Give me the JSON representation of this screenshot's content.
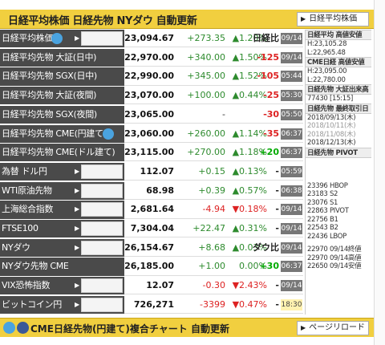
{
  "header": {
    "title": "日経平均株価 日経先物 NYダウ 自動更新",
    "button_label": "日経平均株価"
  },
  "rows": [
    {
      "name": "日経平均株価",
      "price": "23,094.67",
      "change": "+273.35",
      "pct": "▲1.20%",
      "extra": "日経比",
      "time": "09/14",
      "tw": true,
      "chart": true
    },
    {
      "name": "日経平均先物 大証(日中)",
      "price": "22,970.00",
      "change": "+340.00",
      "pct": "▲1.50%",
      "extra": "-125",
      "time": "09/14"
    },
    {
      "name": "日経平均先物 SGX(日中)",
      "price": "22,990.00",
      "change": "+345.00",
      "pct": "▲1.52%",
      "extra": "-105",
      "time": "05:44"
    },
    {
      "name": "日経平均先物 大証(夜間)",
      "price": "23,070.00",
      "change": "+100.00",
      "pct": "▲0.44%",
      "extra": "-25",
      "time": "05:30"
    },
    {
      "name": "日経平均先物 SGX(夜間)",
      "price": "23,065.00",
      "change": "-",
      "pct": "-",
      "extra": "-30",
      "time": "05:50"
    },
    {
      "name": "日経平均先物 CME(円建て)",
      "price": "23,060.00",
      "change": "+260.00",
      "pct": "▲1.14%",
      "extra": "-35",
      "time": "06:37",
      "tw": true
    },
    {
      "name": "日経平均先物 CME(ドル建て)",
      "price": "23,115.00",
      "change": "+270.00",
      "pct": "▲1.18%",
      "extra": "+20",
      "time": "06:37"
    },
    {
      "name": "為替 ドル円",
      "price": "112.07",
      "change": "+0.15",
      "pct": "▲0.13%",
      "extra": "-",
      "time": "05:59",
      "chart": true
    },
    {
      "name": "WTI原油先物",
      "price": "68.98",
      "change": "+0.39",
      "pct": "▲0.57%",
      "extra": "-",
      "time": "06:38",
      "chart": true
    },
    {
      "name": "上海総合指数",
      "price": "2,681.64",
      "change": "-4.94",
      "pct": "▼0.18%",
      "extra": "-",
      "time": "09/14",
      "chart": true
    },
    {
      "name": "FTSE100",
      "price": "7,304.04",
      "change": "+22.47",
      "pct": "▲0.31%",
      "extra": "-",
      "time": "09/14",
      "chart": true
    },
    {
      "name": "NYダウ",
      "price": "26,154.67",
      "change": "+8.68",
      "pct": "▲0.03%",
      "extra": "ダウ比",
      "time": "09/14",
      "chart": true
    },
    {
      "name": "NYダウ先物 CME",
      "price": "26,185.00",
      "change": "+1.00",
      "pct": "0.00%",
      "extra": "+30",
      "time": "06:37"
    },
    {
      "name": "VIX恐怖指数",
      "price": "12.07",
      "change": "-0.30",
      "pct": "▼2.43%",
      "extra": "-",
      "time": "09/14",
      "chart": true
    },
    {
      "name": "ビットコイン円",
      "price": "726,271",
      "change": "-3399",
      "pct": "▼0.47%",
      "extra": "-",
      "time": "18:30",
      "chart": true
    }
  ],
  "side": {
    "h1": "日経平均 高値安値",
    "h1_lines": [
      "H:23,105.28",
      "L:22,965.48"
    ],
    "h2": "CME日経 高値安値",
    "h2_lines": [
      "H:23,095.00",
      "L:22,780.00"
    ],
    "h3": "日経先物 大証出来高",
    "h3_lines": [
      "77430 [15:15]"
    ],
    "h4": "日経先物 最終取引日",
    "h4_lines": [
      "2018/09/13(木)",
      "2018/10/11(木)",
      "2018/11/08(木)",
      "2018/12/13(木)"
    ],
    "h5": "日経先物 PIVOT",
    "h5_lines": [
      "23396 HBOP",
      "23183 S2",
      "23076 S1",
      "22863 PIVOT",
      "22756 B1",
      "22543 B2",
      "22436 LBOP",
      "22970 09/14終値",
      "22970 09/14高値",
      "22650 09/14安値"
    ]
  },
  "footer": {
    "title": "CME日経先物(円建て)複合チャート 自動更新",
    "button_label": "ページリロード"
  },
  "colors": {
    "header_bg": "#f1cf3f",
    "row_label_bg": "#4a4a4a",
    "up": "#2e8b2e",
    "down": "#dd2222"
  }
}
